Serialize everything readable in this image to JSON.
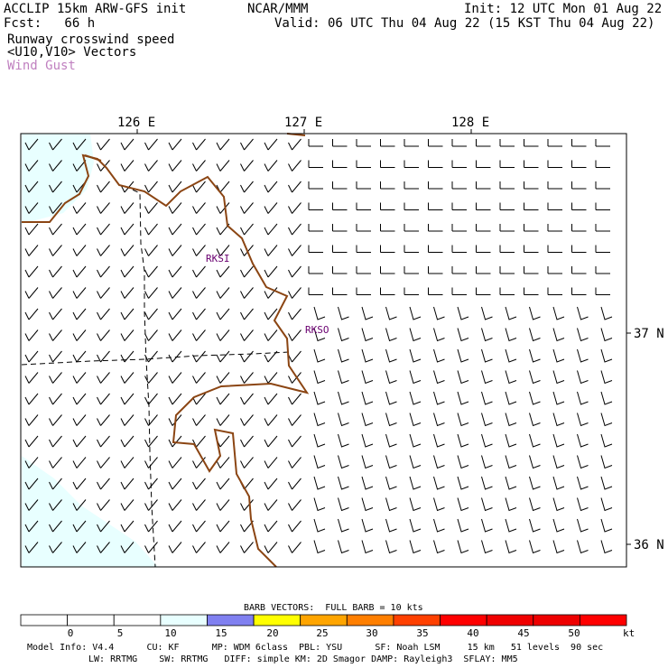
{
  "header": {
    "title_left": "ACCLIP 15km ARW-GFS init",
    "center": "NCAR/MMM",
    "init": "Init: 12 UTC Mon 01 Aug 22",
    "fcst": "Fcst:   66 h",
    "valid": "Valid: 06 UTC Thu 04 Aug 22 (15 KST Thu 04 Aug 22)",
    "field1": "Runway crosswind speed",
    "field2": "<U10,V10> Vectors",
    "field3": "Wind Gust"
  },
  "axes": {
    "lon_labels": [
      "126 E",
      "127 E",
      "128 E"
    ],
    "lat_labels": [
      "37 N",
      "36 N"
    ]
  },
  "stations": [
    "RKSI",
    "RKSO"
  ],
  "colorbar": {
    "title": "BARB VECTORS:  FULL BARB = 10 kts",
    "ticks": [
      "0",
      "5",
      "10",
      "15",
      "20",
      "25",
      "30",
      "35",
      "40",
      "45",
      "50"
    ],
    "unit": "kt",
    "colors": [
      "#ffffff",
      "#ffffff",
      "#ffffff",
      "#e8ffff",
      "#8080f0",
      "#ffff00",
      "#ffa500",
      "#ff7f00",
      "#ff4000",
      "#ff0000",
      "#f00000",
      "#ee0000",
      "#ff0000"
    ]
  },
  "footer": {
    "line1": "Model Info: V4.4      CU: KF      MP: WDM 6class  PBL: YSU      SF: Noah LSM     15 km   51 levels  90 sec",
    "line2": "LW: RRTMG    SW: RRTMG   DIFF: simple KM: 2D Smagor DAMP: Rayleigh3  SFLAY: MM5"
  },
  "colors": {
    "coast": "#8b4513",
    "gust_label": "#c080c0",
    "station": "#6a0070",
    "shade": "#e8ffff"
  }
}
